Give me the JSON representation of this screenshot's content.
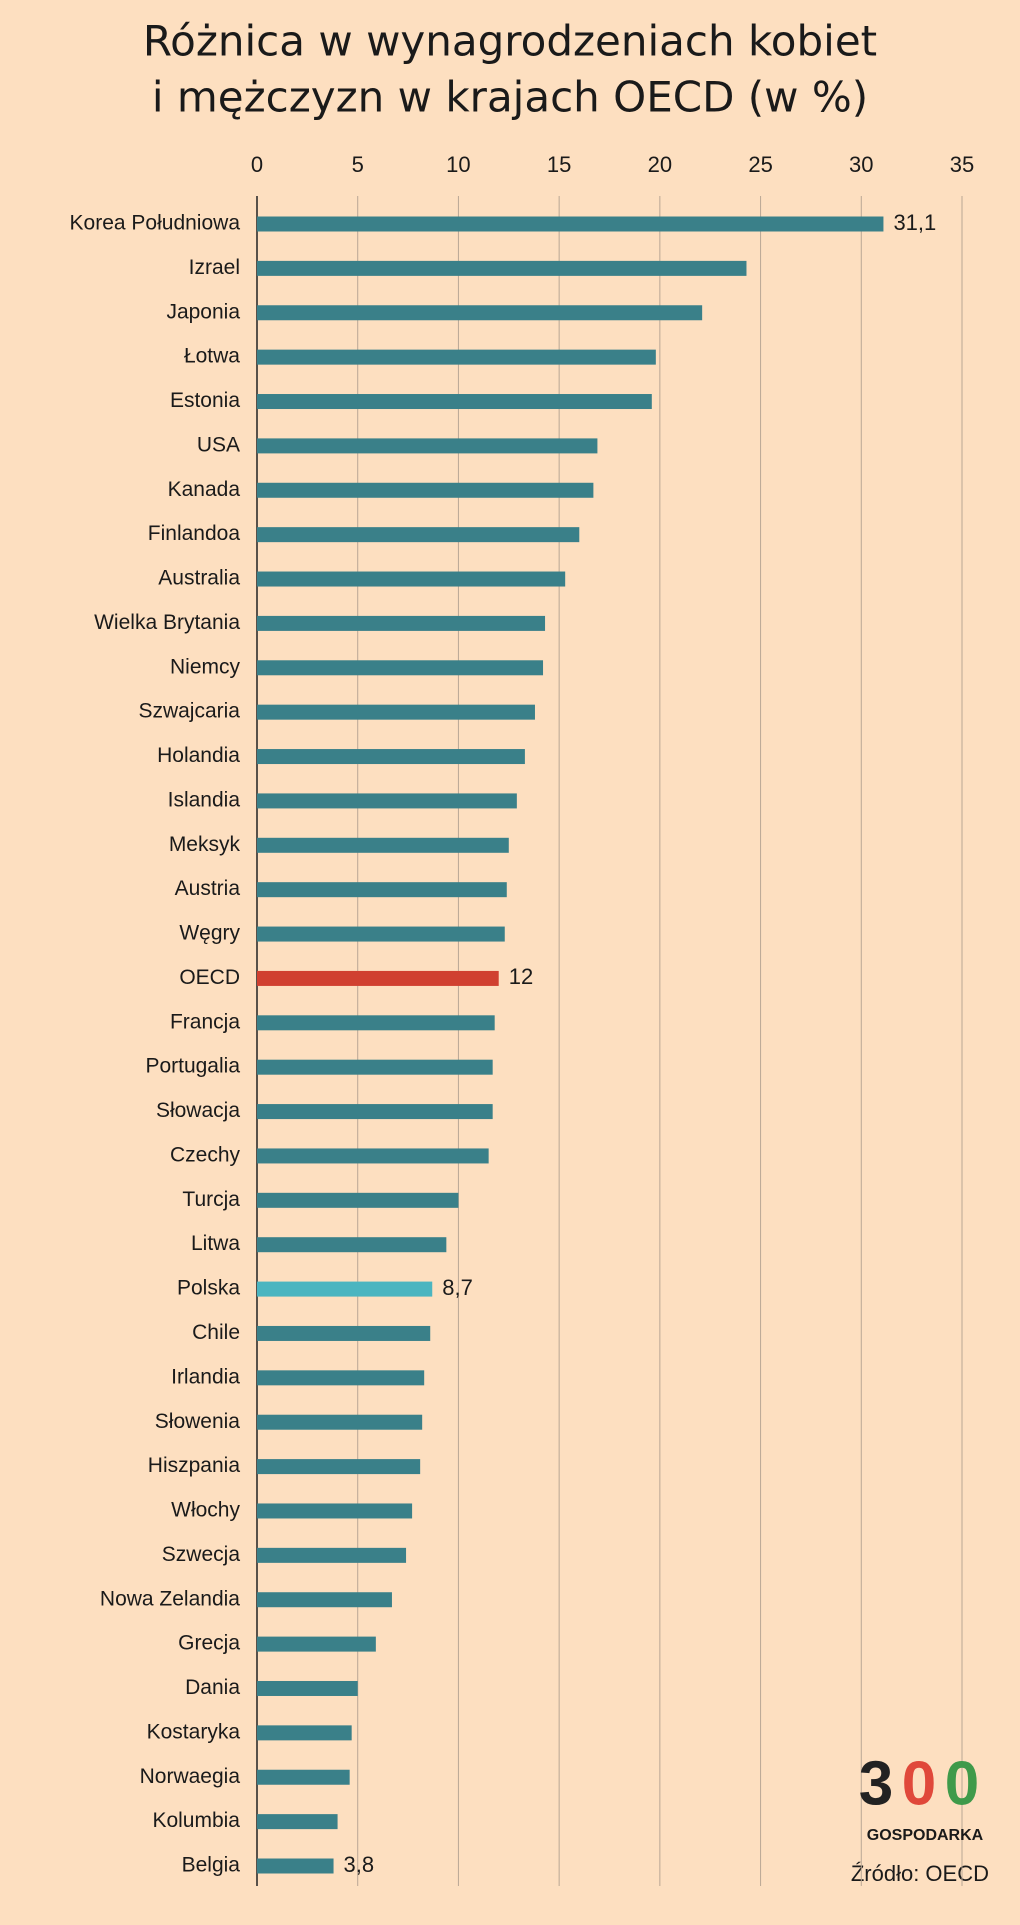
{
  "chart_data": {
    "type": "bar",
    "orientation": "horizontal",
    "title": [
      "Różnica w wynagrodzeniach kobiet",
      "i mężczyzn w krajach OECD (w %)"
    ],
    "categories": [
      "Korea Południowa",
      "Izrael",
      "Japonia",
      "Łotwa",
      "Estonia",
      "USA",
      "Kanada",
      "Finlandoa",
      "Australia",
      "Wielka Brytania",
      "Niemcy",
      "Szwajcaria",
      "Holandia",
      "Islandia",
      "Meksyk",
      "Austria",
      "Węgry",
      "OECD",
      "Francja",
      "Portugalia",
      "Słowacja",
      "Czechy",
      "Turcja",
      "Litwa",
      "Polska",
      "Chile",
      "Irlandia",
      "Słowenia",
      "Hiszpania",
      "Włochy",
      "Szwecja",
      "Nowa Zelandia",
      "Grecja",
      "Dania",
      "Kostaryka",
      "Norwaegia",
      "Kolumbia",
      "Belgia"
    ],
    "values": [
      31.1,
      24.3,
      22.1,
      19.8,
      19.6,
      16.9,
      16.7,
      16.0,
      15.3,
      14.3,
      14.2,
      13.8,
      13.3,
      12.9,
      12.5,
      12.4,
      12.3,
      12,
      11.8,
      11.7,
      11.7,
      11.5,
      10.0,
      9.4,
      8.7,
      8.6,
      8.3,
      8.2,
      8.1,
      7.7,
      7.4,
      6.7,
      5.9,
      5.0,
      4.7,
      4.6,
      4.0,
      3.8
    ],
    "value_labels": [
      "31,1",
      null,
      null,
      null,
      null,
      null,
      null,
      null,
      null,
      null,
      null,
      null,
      null,
      null,
      null,
      null,
      null,
      "12",
      null,
      null,
      null,
      null,
      null,
      null,
      "8,7",
      null,
      null,
      null,
      null,
      null,
      null,
      null,
      null,
      null,
      null,
      null,
      null,
      "3,8"
    ],
    "color": "#3a8089",
    "colors": {
      "OECD": "#d04030",
      "Polska": "#4bb5c0"
    },
    "xlim": [
      0,
      35
    ],
    "xticks": [
      0,
      5,
      10,
      15,
      20,
      25,
      30,
      35
    ],
    "grid": true,
    "source": "Źródło: OECD"
  },
  "logo": {
    "digits": [
      "3",
      "0",
      "0"
    ],
    "digit_colors": [
      "#222222",
      "#e0483a",
      "#3f9a4a"
    ],
    "name": "GOSPODARKA"
  }
}
